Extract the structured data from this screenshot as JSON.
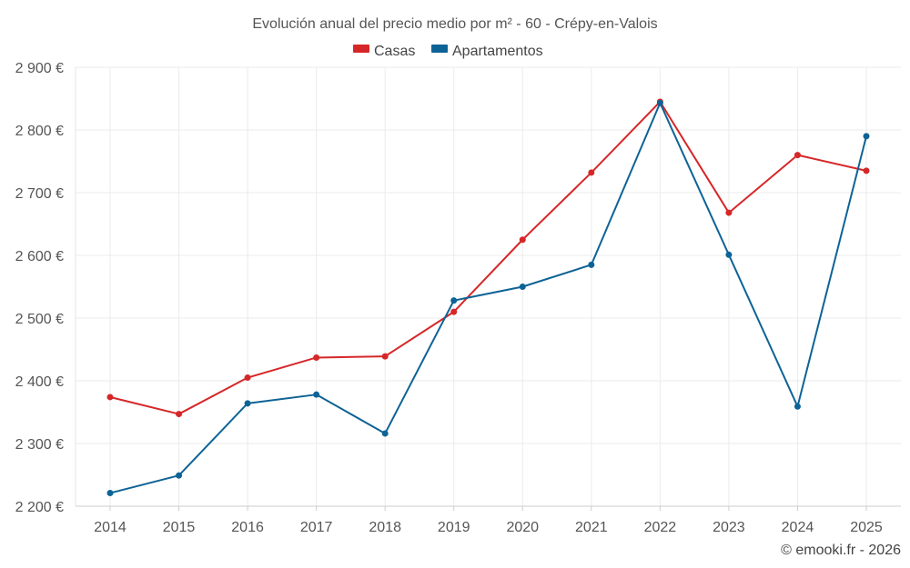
{
  "chart_data": {
    "type": "line",
    "title": "Evolución anual del precio medio por m² - 60 - Crépy-en-Valois",
    "xlabel": "",
    "ylabel": "",
    "categories": [
      "2014",
      "2015",
      "2016",
      "2017",
      "2018",
      "2019",
      "2020",
      "2021",
      "2022",
      "2023",
      "2024",
      "2025"
    ],
    "ylim": [
      2200,
      2900
    ],
    "yticks": [
      2200,
      2300,
      2400,
      2500,
      2600,
      2700,
      2800,
      2900
    ],
    "ytick_labels": [
      "2 200 €",
      "2 300 €",
      "2 400 €",
      "2 500 €",
      "2 600 €",
      "2 700 €",
      "2 800 €",
      "2 900 €"
    ],
    "grid": true,
    "legend_position": "top-center",
    "series": [
      {
        "name": "Casas",
        "color": "#d62728",
        "values": [
          2374,
          2347,
          2405,
          2437,
          2439,
          2510,
          2625,
          2732,
          2845,
          2668,
          2760,
          2735
        ]
      },
      {
        "name": "Apartamentos",
        "color": "#0e6396",
        "values": [
          2221,
          2249,
          2364,
          2378,
          2316,
          2528,
          2550,
          2585,
          2843,
          2601,
          2359,
          2790
        ]
      }
    ]
  },
  "credit": "© emooki.fr - 2026"
}
